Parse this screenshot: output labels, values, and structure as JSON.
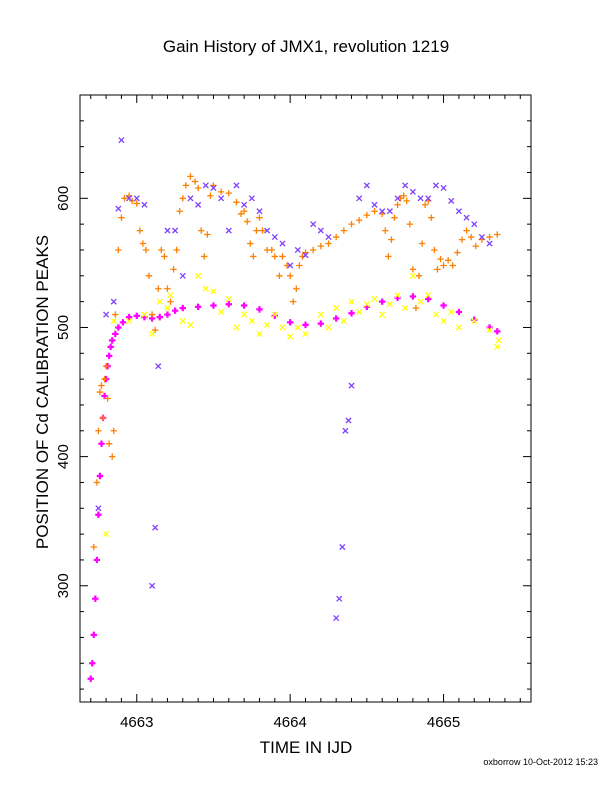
{
  "chart_data": {
    "type": "scatter",
    "title": "Gain History of JMX1, revolution 1219",
    "xlabel": "TIME IN IJD",
    "ylabel": "POSITION OF Cd CALIBRATION PEAKS",
    "xlim": [
      4662.63,
      4665.57
    ],
    "ylim": [
      210,
      680
    ],
    "x_ticks": [
      4663,
      4664,
      4665
    ],
    "y_ticks": [
      300,
      400,
      500,
      600
    ],
    "grid": false,
    "legend": "none",
    "footer": "oxborrow 10-Oct-2012 15:23",
    "series": [
      {
        "color": "#ff00ff",
        "marker": "plus",
        "description": "dense smooth curve",
        "points": [
          [
            4662.7,
            228
          ],
          [
            4662.71,
            240
          ],
          [
            4662.72,
            262
          ],
          [
            4662.73,
            290
          ],
          [
            4662.74,
            320
          ],
          [
            4662.75,
            355
          ],
          [
            4662.76,
            385
          ],
          [
            4662.77,
            410
          ],
          [
            4662.78,
            430
          ],
          [
            4662.79,
            447
          ],
          [
            4662.8,
            460
          ],
          [
            4662.81,
            470
          ],
          [
            4662.82,
            478
          ],
          [
            4662.83,
            485
          ],
          [
            4662.84,
            490
          ],
          [
            4662.86,
            495
          ],
          [
            4662.88,
            500
          ],
          [
            4662.91,
            504
          ],
          [
            4662.95,
            508
          ],
          [
            4663.0,
            509
          ],
          [
            4663.05,
            508
          ],
          [
            4663.1,
            507
          ],
          [
            4663.15,
            508
          ],
          [
            4663.2,
            510
          ],
          [
            4663.25,
            513
          ],
          [
            4663.3,
            515
          ],
          [
            4663.4,
            516
          ],
          [
            4663.5,
            517
          ],
          [
            4663.6,
            518
          ],
          [
            4663.7,
            517
          ],
          [
            4663.8,
            514
          ],
          [
            4663.9,
            509
          ],
          [
            4664.0,
            504
          ],
          [
            4664.1,
            502
          ],
          [
            4664.2,
            503
          ],
          [
            4664.3,
            507
          ],
          [
            4664.4,
            511
          ],
          [
            4664.5,
            516
          ],
          [
            4664.6,
            520
          ],
          [
            4664.7,
            523
          ],
          [
            4664.8,
            524
          ],
          [
            4664.9,
            522
          ],
          [
            4665.0,
            517
          ],
          [
            4665.1,
            512
          ],
          [
            4665.2,
            506
          ],
          [
            4665.3,
            500
          ],
          [
            4665.35,
            497
          ]
        ]
      },
      {
        "color": "#ff8000",
        "marker": "plus",
        "description": "orange peak track",
        "points": [
          [
            4662.72,
            330
          ],
          [
            4662.74,
            380
          ],
          [
            4662.75,
            420
          ],
          [
            4662.76,
            450
          ],
          [
            4662.77,
            455
          ],
          [
            4662.78,
            430
          ],
          [
            4662.79,
            460
          ],
          [
            4662.8,
            470
          ],
          [
            4662.81,
            445
          ],
          [
            4662.82,
            410
          ],
          [
            4662.84,
            400
          ],
          [
            4662.85,
            420
          ],
          [
            4662.86,
            510
          ],
          [
            4662.88,
            560
          ],
          [
            4662.9,
            585
          ],
          [
            4662.92,
            600
          ],
          [
            4662.95,
            602
          ],
          [
            4662.97,
            598
          ],
          [
            4663.0,
            596
          ],
          [
            4663.02,
            575
          ],
          [
            4663.04,
            565
          ],
          [
            4663.06,
            560
          ],
          [
            4663.08,
            540
          ],
          [
            4663.1,
            510
          ],
          [
            4663.12,
            498
          ],
          [
            4663.14,
            530
          ],
          [
            4663.16,
            560
          ],
          [
            4663.18,
            555
          ],
          [
            4663.2,
            530
          ],
          [
            4663.22,
            520
          ],
          [
            4663.24,
            545
          ],
          [
            4663.26,
            560
          ],
          [
            4663.28,
            590
          ],
          [
            4663.3,
            600
          ],
          [
            4663.32,
            610
          ],
          [
            4663.35,
            617
          ],
          [
            4663.38,
            613
          ],
          [
            4663.4,
            608
          ],
          [
            4663.42,
            575
          ],
          [
            4663.44,
            555
          ],
          [
            4663.46,
            572
          ],
          [
            4663.48,
            602
          ],
          [
            4663.5,
            610
          ],
          [
            4663.55,
            605
          ],
          [
            4663.6,
            604
          ],
          [
            4663.65,
            597
          ],
          [
            4663.68,
            588
          ],
          [
            4663.7,
            590
          ],
          [
            4663.72,
            582
          ],
          [
            4663.74,
            565
          ],
          [
            4663.76,
            555
          ],
          [
            4663.78,
            575
          ],
          [
            4663.8,
            585
          ],
          [
            4663.82,
            575
          ],
          [
            4663.85,
            560
          ],
          [
            4663.88,
            560
          ],
          [
            4663.9,
            555
          ],
          [
            4663.93,
            540
          ],
          [
            4663.95,
            555
          ],
          [
            4663.98,
            548
          ],
          [
            4664.0,
            540
          ],
          [
            4664.02,
            520
          ],
          [
            4664.04,
            530
          ],
          [
            4664.06,
            548
          ],
          [
            4664.08,
            555
          ],
          [
            4664.1,
            558
          ],
          [
            4664.15,
            560
          ],
          [
            4664.2,
            563
          ],
          [
            4664.25,
            565
          ],
          [
            4664.3,
            570
          ],
          [
            4664.35,
            575
          ],
          [
            4664.4,
            580
          ],
          [
            4664.45,
            583
          ],
          [
            4664.5,
            587
          ],
          [
            4664.55,
            590
          ],
          [
            4664.6,
            588
          ],
          [
            4664.62,
            575
          ],
          [
            4664.64,
            555
          ],
          [
            4664.66,
            568
          ],
          [
            4664.68,
            585
          ],
          [
            4664.7,
            595
          ],
          [
            4664.72,
            600
          ],
          [
            4664.74,
            602
          ],
          [
            4664.76,
            598
          ],
          [
            4664.78,
            580
          ],
          [
            4664.8,
            545
          ],
          [
            4664.82,
            515
          ],
          [
            4664.84,
            540
          ],
          [
            4664.86,
            565
          ],
          [
            4664.88,
            595
          ],
          [
            4664.9,
            598
          ],
          [
            4664.92,
            585
          ],
          [
            4664.94,
            560
          ],
          [
            4664.96,
            545
          ],
          [
            4664.98,
            553
          ],
          [
            4665.0,
            548
          ],
          [
            4665.03,
            552
          ],
          [
            4665.06,
            548
          ],
          [
            4665.09,
            558
          ],
          [
            4665.12,
            568
          ],
          [
            4665.15,
            575
          ],
          [
            4665.18,
            570
          ],
          [
            4665.21,
            563
          ],
          [
            4665.25,
            568
          ],
          [
            4665.3,
            570
          ],
          [
            4665.35,
            572
          ]
        ]
      },
      {
        "color": "#ffff00",
        "marker": "x",
        "description": "yellow x markers",
        "points": [
          [
            4662.8,
            340
          ],
          [
            4662.85,
            505
          ],
          [
            4662.95,
            505
          ],
          [
            4663.05,
            510
          ],
          [
            4663.1,
            495
          ],
          [
            4663.15,
            520
          ],
          [
            4663.2,
            515
          ],
          [
            4663.22,
            525
          ],
          [
            4663.3,
            505
          ],
          [
            4663.35,
            502
          ],
          [
            4663.4,
            540
          ],
          [
            4663.45,
            530
          ],
          [
            4663.5,
            528
          ],
          [
            4663.55,
            512
          ],
          [
            4663.6,
            522
          ],
          [
            4663.65,
            500
          ],
          [
            4663.7,
            510
          ],
          [
            4663.75,
            505
          ],
          [
            4663.8,
            495
          ],
          [
            4663.85,
            502
          ],
          [
            4663.9,
            510
          ],
          [
            4663.95,
            500
          ],
          [
            4664.0,
            493
          ],
          [
            4664.05,
            500
          ],
          [
            4664.1,
            495
          ],
          [
            4664.2,
            510
          ],
          [
            4664.25,
            500
          ],
          [
            4664.3,
            515
          ],
          [
            4664.35,
            505
          ],
          [
            4664.4,
            520
          ],
          [
            4664.45,
            512
          ],
          [
            4664.5,
            518
          ],
          [
            4664.55,
            522
          ],
          [
            4664.6,
            510
          ],
          [
            4664.65,
            518
          ],
          [
            4664.7,
            525
          ],
          [
            4664.75,
            515
          ],
          [
            4664.8,
            540
          ],
          [
            4664.85,
            520
          ],
          [
            4664.9,
            525
          ],
          [
            4664.95,
            510
          ],
          [
            4665.0,
            505
          ],
          [
            4665.05,
            512
          ],
          [
            4665.1,
            500
          ],
          [
            4665.2,
            505
          ],
          [
            4665.3,
            498
          ],
          [
            4665.35,
            485
          ],
          [
            4665.36,
            490
          ]
        ]
      },
      {
        "color": "#8040ff",
        "marker": "x",
        "description": "purple x markers",
        "points": [
          [
            4662.75,
            360
          ],
          [
            4662.8,
            510
          ],
          [
            4662.85,
            520
          ],
          [
            4662.88,
            592
          ],
          [
            4662.9,
            645
          ],
          [
            4662.95,
            600
          ],
          [
            4663.0,
            600
          ],
          [
            4663.05,
            595
          ],
          [
            4663.1,
            300
          ],
          [
            4663.12,
            345
          ],
          [
            4663.14,
            470
          ],
          [
            4663.2,
            575
          ],
          [
            4663.25,
            575
          ],
          [
            4663.3,
            540
          ],
          [
            4663.35,
            600
          ],
          [
            4663.4,
            595
          ],
          [
            4663.45,
            610
          ],
          [
            4663.5,
            608
          ],
          [
            4663.55,
            600
          ],
          [
            4663.6,
            575
          ],
          [
            4663.65,
            610
          ],
          [
            4663.7,
            595
          ],
          [
            4663.75,
            600
          ],
          [
            4663.8,
            590
          ],
          [
            4663.85,
            575
          ],
          [
            4663.9,
            570
          ],
          [
            4663.95,
            565
          ],
          [
            4664.0,
            548
          ],
          [
            4664.05,
            560
          ],
          [
            4664.1,
            556
          ],
          [
            4664.15,
            580
          ],
          [
            4664.2,
            575
          ],
          [
            4664.25,
            570
          ],
          [
            4664.3,
            275
          ],
          [
            4664.32,
            290
          ],
          [
            4664.34,
            330
          ],
          [
            4664.36,
            420
          ],
          [
            4664.38,
            428
          ],
          [
            4664.4,
            455
          ],
          [
            4664.45,
            600
          ],
          [
            4664.5,
            610
          ],
          [
            4664.55,
            595
          ],
          [
            4664.6,
            590
          ],
          [
            4664.65,
            590
          ],
          [
            4664.7,
            600
          ],
          [
            4664.75,
            610
          ],
          [
            4664.8,
            605
          ],
          [
            4664.85,
            600
          ],
          [
            4664.9,
            600
          ],
          [
            4664.95,
            610
          ],
          [
            4665.0,
            608
          ],
          [
            4665.05,
            598
          ],
          [
            4665.1,
            590
          ],
          [
            4665.15,
            585
          ],
          [
            4665.2,
            580
          ],
          [
            4665.25,
            570
          ],
          [
            4665.3,
            565
          ]
        ]
      }
    ]
  }
}
